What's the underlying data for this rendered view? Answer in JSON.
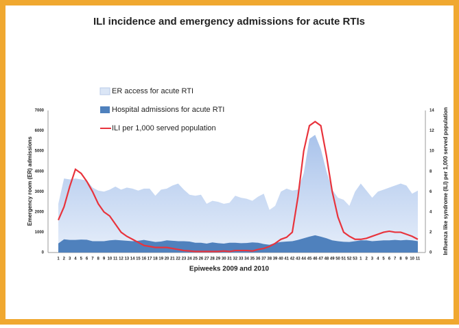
{
  "chart_data": {
    "type": "area",
    "title": "ILI incidence and emergency admissions for acute RTIs",
    "x_label": "Epiweeks 2009 and 2010",
    "y_label": "Emergency room (ER) admissions",
    "y2_label": "Influenza like syndrome (ILI) per 1,000 served population",
    "categories": [
      "1",
      "2",
      "3",
      "4",
      "5",
      "6",
      "7",
      "8",
      "9",
      "10",
      "11",
      "12",
      "13",
      "14",
      "15",
      "16",
      "17",
      "18",
      "19",
      "20",
      "21",
      "22",
      "23",
      "24",
      "25",
      "26",
      "27",
      "28",
      "29",
      "30",
      "31",
      "32",
      "33",
      "34",
      "35",
      "36",
      "37",
      "38",
      "39",
      "40",
      "41",
      "42",
      "43",
      "44",
      "45",
      "46",
      "47",
      "48",
      "49",
      "50",
      "51",
      "52",
      "53",
      "1",
      "2",
      "3",
      "4",
      "5",
      "6",
      "7",
      "8",
      "9",
      "10",
      "11"
    ],
    "ylim": [
      0,
      7000
    ],
    "yticks": [
      0,
      1000,
      2000,
      3000,
      4000,
      5000,
      6000,
      7000
    ],
    "y2lim": [
      0,
      14
    ],
    "y2ticks": [
      0,
      2,
      4,
      6,
      8,
      10,
      12,
      14
    ],
    "series": [
      {
        "name": "ER access for acute RTI",
        "color": "#c9d9f1",
        "values": [
          2400,
          3650,
          3600,
          3650,
          3600,
          3550,
          3200,
          3050,
          3000,
          3100,
          3250,
          3100,
          3200,
          3150,
          3050,
          3150,
          3150,
          2800,
          3100,
          3150,
          3300,
          3400,
          3100,
          2850,
          2800,
          2850,
          2400,
          2550,
          2500,
          2400,
          2450,
          2800,
          2700,
          2650,
          2550,
          2750,
          2900,
          2100,
          2300,
          3000,
          3150,
          3050,
          3100,
          3900,
          5600,
          5800,
          5100,
          4000,
          3100,
          2700,
          2600,
          2300,
          3000,
          3400,
          3050,
          2700,
          3000,
          3100,
          3200,
          3300,
          3400,
          3300,
          2900,
          3050
        ]
      },
      {
        "name": "Hospital admissions for acute RTI",
        "color": "#4f81bd",
        "values": [
          450,
          650,
          620,
          620,
          640,
          630,
          560,
          560,
          560,
          600,
          620,
          600,
          580,
          560,
          580,
          620,
          570,
          520,
          540,
          600,
          580,
          560,
          560,
          540,
          480,
          480,
          440,
          500,
          460,
          440,
          480,
          480,
          460,
          470,
          500,
          480,
          420,
          380,
          470,
          520,
          540,
          560,
          620,
          700,
          780,
          850,
          780,
          700,
          600,
          560,
          530,
          520,
          560,
          600,
          600,
          560,
          580,
          600,
          600,
          620,
          600,
          620,
          600,
          560
        ]
      },
      {
        "name": "ILI per 1,000 served population",
        "color": "#e8333c",
        "axis": "y2",
        "values": [
          3.2,
          4.5,
          6.5,
          8.2,
          7.8,
          7,
          6,
          4.8,
          4,
          3.6,
          2.8,
          2,
          1.6,
          1.3,
          1,
          0.7,
          0.6,
          0.5,
          0.5,
          0.5,
          0.4,
          0.3,
          0.2,
          0.15,
          0.1,
          0.1,
          0.1,
          0.1,
          0.1,
          0.15,
          0.1,
          0.2,
          0.2,
          0.2,
          0.15,
          0.3,
          0.4,
          0.6,
          0.9,
          1.3,
          1.5,
          2,
          5.5,
          10,
          12.5,
          12.9,
          12.5,
          9.5,
          6,
          3.5,
          2,
          1.6,
          1.3,
          1.3,
          1.4,
          1.6,
          1.8,
          2,
          2.1,
          2,
          2,
          1.8,
          1.6,
          1.3
        ]
      }
    ]
  }
}
